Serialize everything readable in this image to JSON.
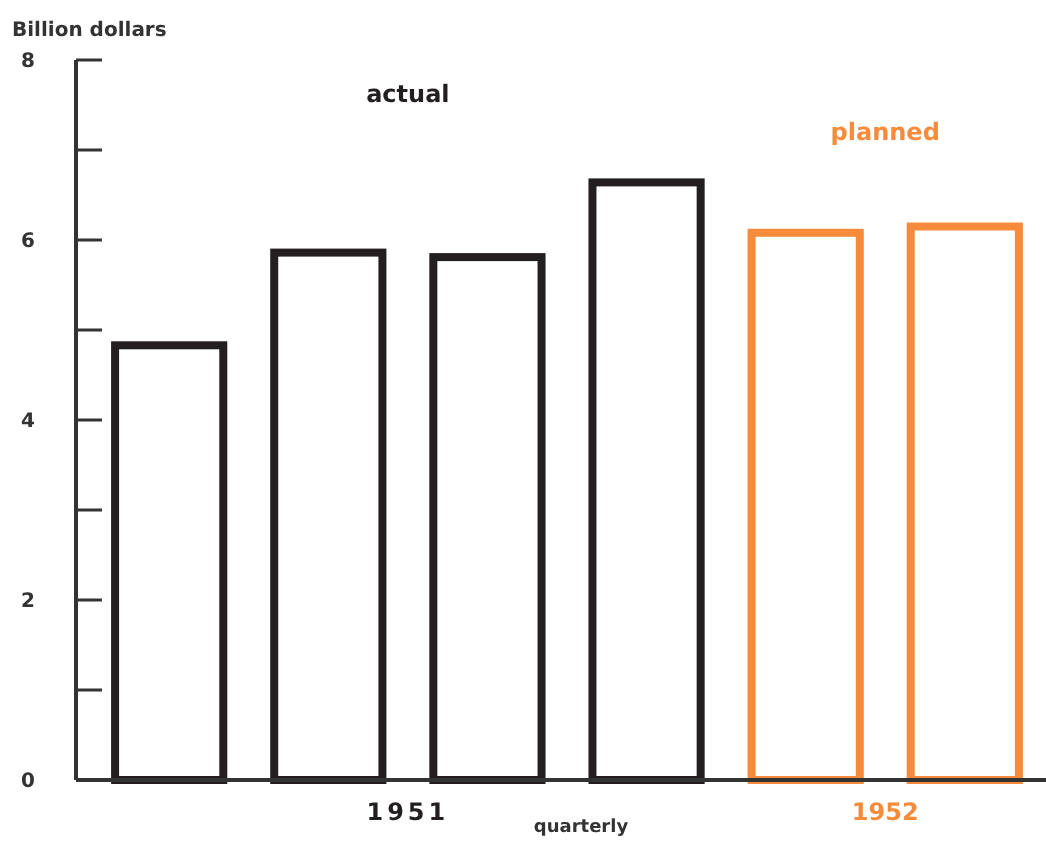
{
  "chart_data": {
    "type": "bar",
    "stacked": true,
    "ylabel": "Billion dollars",
    "xlabel": "quarterly",
    "categories": [
      null,
      null,
      null,
      null,
      null,
      null
    ],
    "series": [
      {
        "name": "actual",
        "color": "#231f20",
        "values": [
          4.83,
          5.86,
          5.81,
          6.64,
          null,
          null
        ]
      },
      {
        "name": "planned",
        "color": "#f78b3c",
        "values": [
          null,
          null,
          null,
          null,
          6.08,
          6.15
        ]
      }
    ],
    "annotations": [
      "1951",
      "1952"
    ],
    "ylim": [
      0,
      8
    ],
    "yticks": [
      0,
      {
        "value": 1,
        "label": null
      },
      2,
      {
        "value": 3,
        "label": null
      },
      4,
      {
        "value": 5,
        "label": null
      },
      6,
      {
        "value": 7,
        "label": null
      },
      8
    ],
    "grid": false
  }
}
